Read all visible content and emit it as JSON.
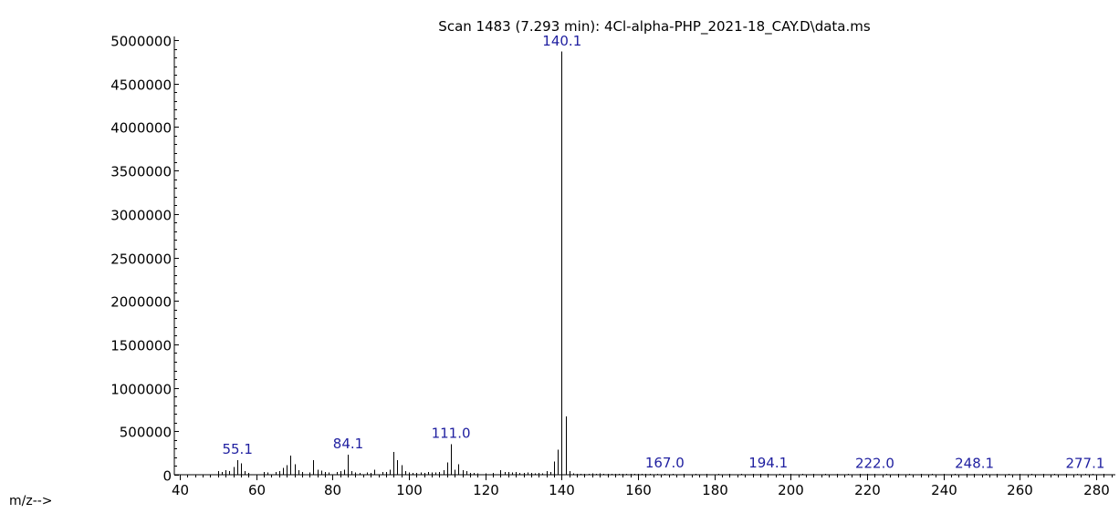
{
  "chart_data": {
    "type": "bar",
    "title": "Scan 1483 (7.293 min): 4Cl-alpha-PHP_2021-18_CAY.D\\data.ms",
    "xlabel": "m/z-->",
    "ylabel": "",
    "xlim": [
      40,
      285
    ],
    "ylim": [
      0,
      5000000
    ],
    "x_ticks": [
      40,
      60,
      80,
      100,
      120,
      140,
      160,
      180,
      200,
      220,
      240,
      260,
      280
    ],
    "y_ticks": [
      0,
      500000,
      1000000,
      1500000,
      2000000,
      2500000,
      3000000,
      3500000,
      4000000,
      4500000,
      5000000
    ],
    "grid": false,
    "peak_labels": [
      55.1,
      84.1,
      111.0,
      140.1,
      167.0,
      194.1,
      222.0,
      248.1,
      277.1
    ],
    "series": [
      {
        "mz": [
          50,
          51,
          52,
          53,
          54,
          55,
          56,
          57,
          58,
          62,
          63,
          65,
          66,
          67,
          68,
          69,
          70,
          71,
          72,
          74,
          75,
          76,
          77,
          78,
          79,
          81,
          82,
          83,
          84,
          85,
          86,
          87,
          89,
          90,
          91,
          93,
          94,
          95,
          96,
          97,
          98,
          99,
          100,
          101,
          102,
          103,
          104,
          105,
          106,
          107,
          108,
          109,
          110,
          111,
          112,
          113,
          114,
          115,
          116,
          117,
          118,
          120,
          122,
          124,
          125,
          126,
          127,
          128,
          129,
          130,
          131,
          132,
          133,
          134,
          135,
          136,
          137,
          138,
          139,
          140,
          141,
          142,
          143,
          144,
          145,
          146,
          147,
          148,
          149,
          150,
          151,
          152,
          153,
          154,
          155,
          156,
          157,
          158,
          159,
          160,
          161,
          162,
          163,
          165,
          167,
          169,
          172,
          175,
          178,
          181,
          184,
          187,
          190,
          192,
          194,
          197,
          200,
          203,
          206,
          209,
          212,
          215,
          218,
          220,
          222,
          225,
          228,
          231,
          234,
          237,
          240,
          243,
          246,
          248,
          251,
          254,
          257,
          260,
          263,
          266,
          269,
          272,
          275,
          277,
          279,
          282
        ],
        "intensity": [
          40000,
          30000,
          55000,
          40000,
          90000,
          170000,
          130000,
          40000,
          20000,
          30000,
          25000,
          30000,
          40000,
          80000,
          110000,
          220000,
          120000,
          50000,
          30000,
          25000,
          170000,
          60000,
          45000,
          30000,
          25000,
          30000,
          40000,
          60000,
          230000,
          40000,
          25000,
          20000,
          25000,
          20000,
          60000,
          30000,
          30000,
          60000,
          260000,
          170000,
          110000,
          40000,
          25000,
          20000,
          20000,
          25000,
          20000,
          30000,
          25000,
          25000,
          30000,
          50000,
          140000,
          350000,
          60000,
          120000,
          50000,
          40000,
          20000,
          20000,
          15000,
          15000,
          20000,
          50000,
          30000,
          30000,
          25000,
          30000,
          20000,
          20000,
          25000,
          20000,
          15000,
          20000,
          15000,
          40000,
          30000,
          150000,
          290000,
          4870000,
          670000,
          40000,
          15000,
          10000,
          10000,
          10000,
          10000,
          15000,
          10000,
          15000,
          10000,
          10000,
          10000,
          10000,
          8000,
          8000,
          8000,
          8000,
          6000,
          8000,
          6000,
          6000,
          5000,
          5000,
          10000,
          5000,
          4000,
          4000,
          4000,
          4000,
          4000,
          4000,
          4000,
          3000,
          8000,
          3000,
          3000,
          3000,
          3000,
          3000,
          3000,
          3000,
          3000,
          3000,
          6000,
          3000,
          3000,
          3000,
          3000,
          3000,
          3000,
          3000,
          3000,
          5000,
          3000,
          3000,
          3000,
          3000,
          3000,
          3000,
          3000,
          3000,
          3000,
          5000,
          3000,
          3000
        ]
      }
    ]
  }
}
